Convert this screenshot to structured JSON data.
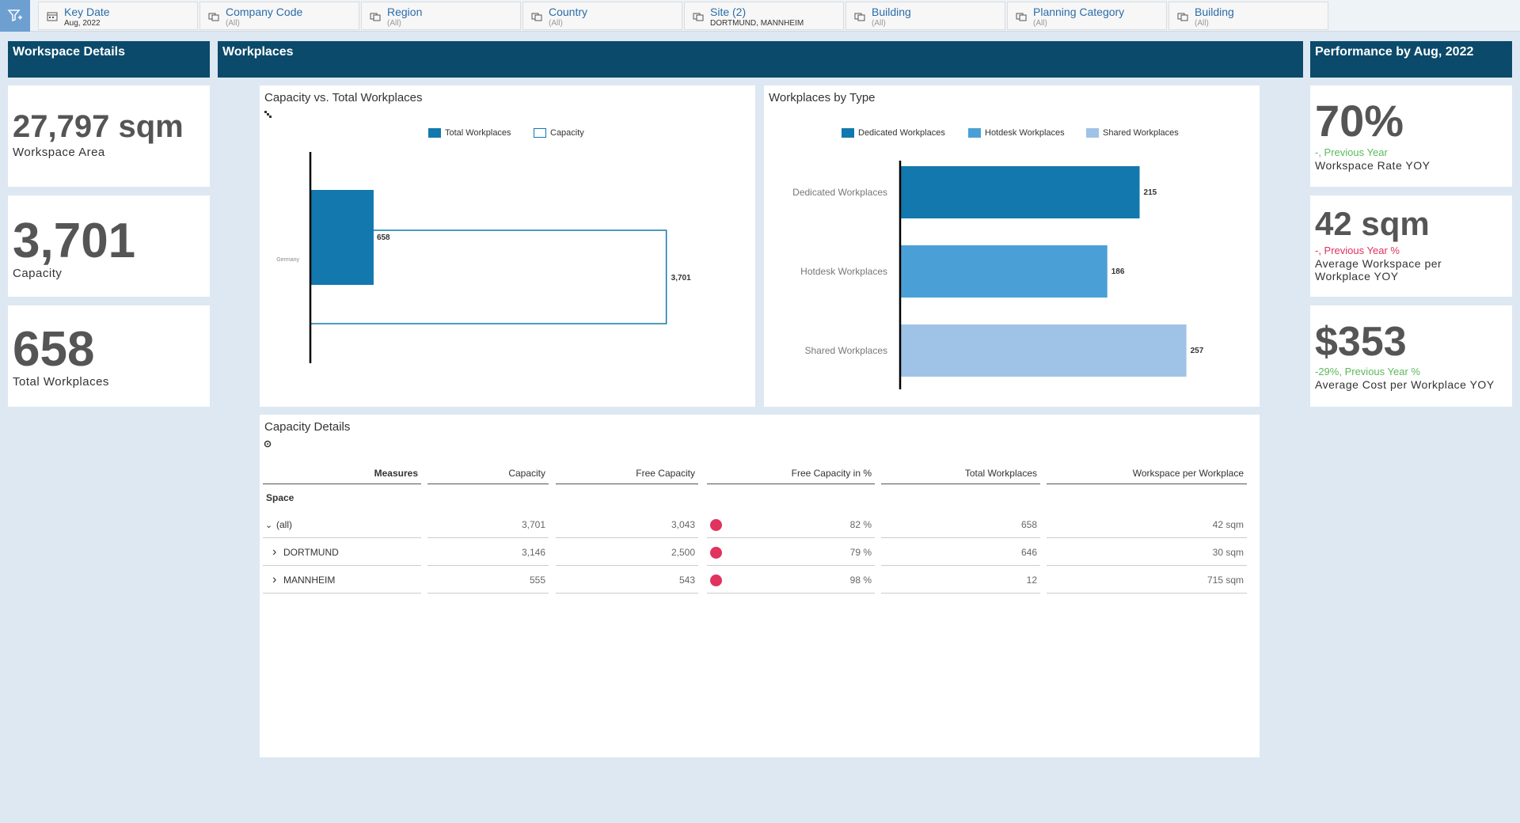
{
  "filters": [
    {
      "title": "Key Date",
      "value": "Aug, 2022",
      "icon": "calendar-icon"
    },
    {
      "title": "Company Code",
      "value": "(All)",
      "icon": "hierarchy-icon"
    },
    {
      "title": "Region",
      "value": "(All)",
      "icon": "hierarchy-icon"
    },
    {
      "title": "Country",
      "value": "(All)",
      "icon": "hierarchy-icon"
    },
    {
      "title": "Site (2)",
      "value": "DORTMUND, MANNHEIM",
      "icon": "hierarchy-icon"
    },
    {
      "title": "Building",
      "value": "(All)",
      "icon": "hierarchy-icon"
    },
    {
      "title": "Planning Category",
      "value": "(All)",
      "icon": "hierarchy-icon"
    },
    {
      "title": "Building",
      "value": "(All)",
      "icon": "hierarchy-icon"
    }
  ],
  "sections": {
    "workspace_details": "Workspace Details",
    "workplaces": "Workplaces",
    "performance": "Performance by Aug, 2022"
  },
  "left_kpis": {
    "area": {
      "value": "27,797 sqm",
      "label": "Workspace Area"
    },
    "capacity": {
      "value": "3,701",
      "label": "Capacity"
    },
    "workplaces": {
      "value": "658",
      "label": "Total Workplaces"
    }
  },
  "right_kpis": {
    "rate": {
      "value": "70%",
      "sub": "-, Previous Year",
      "label": "Workspace Rate YOY"
    },
    "avg_ws": {
      "value": "42 sqm",
      "sub": "-, Previous Year %",
      "label_line1": "Average Workspace per",
      "label_line2": "Workplace YOY"
    },
    "avg_cost": {
      "value": "$353",
      "sub": "-29%, Previous Year %",
      "label": "Average Cost per Workplace YOY"
    }
  },
  "colors": {
    "header": "#0b4a6a",
    "dedicated": "#1278ad",
    "hotdesk": "#4aa0d6",
    "shared": "#9fc3e6",
    "status_red": "#e0335e",
    "status_green": "#5cb85c"
  },
  "chart_data": [
    {
      "type": "bar",
      "title": "Capacity vs. Total Workplaces",
      "categories": [
        "Germany"
      ],
      "series": [
        {
          "name": "Total Workplaces",
          "values": [
            658
          ]
        },
        {
          "name": "Capacity",
          "values": [
            3701
          ]
        }
      ],
      "legend": "top",
      "xlim": [
        0,
        4000
      ]
    },
    {
      "type": "bar",
      "title": "Workplaces by Type",
      "categories": [
        "Dedicated Workplaces",
        "Hotdesk Workplaces",
        "Shared Workplaces"
      ],
      "series": [
        {
          "name": "Dedicated Workplaces",
          "values": [
            215,
            null,
            null
          ]
        },
        {
          "name": "Hotdesk Workplaces",
          "values": [
            null,
            186,
            null
          ]
        },
        {
          "name": "Shared Workplaces",
          "values": [
            null,
            null,
            257
          ]
        }
      ],
      "legend": "top",
      "xlim": [
        0,
        280
      ]
    }
  ],
  "table": {
    "title": "Capacity Details",
    "columns": [
      "Measures",
      "Capacity",
      "Free Capacity",
      "Free Capacity in %",
      "Total Workplaces",
      "Workspace per Workplace"
    ],
    "dimension": "Space",
    "rows": [
      {
        "label": "(all)",
        "expand": "expanded",
        "capacity": "3,701",
        "free": "3,043",
        "status": "red",
        "free_pct": "82 %",
        "total": "658",
        "per": "42 sqm"
      },
      {
        "label": "DORTMUND",
        "expand": "collapsed",
        "capacity": "3,146",
        "free": "2,500",
        "status": "red",
        "free_pct": "79 %",
        "total": "646",
        "per": "30 sqm"
      },
      {
        "label": "MANNHEIM",
        "expand": "collapsed",
        "capacity": "555",
        "free": "543",
        "status": "red",
        "free_pct": "98 %",
        "total": "12",
        "per": "715 sqm"
      }
    ]
  }
}
